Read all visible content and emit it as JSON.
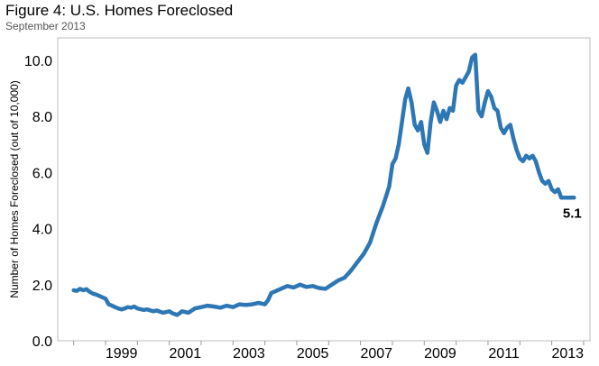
{
  "chart_data": {
    "type": "line",
    "title": "Figure 4: U.S. Homes Foreclosed",
    "subtitle": "September 2013",
    "xlabel": "",
    "ylabel": "Number of Homes Foreclosed (out of 10,000)",
    "xlim": [
      1997.5,
      2014.2
    ],
    "ylim": [
      0,
      10.8
    ],
    "x_ticks": [
      "1999",
      "2001",
      "2003",
      "2005",
      "2007",
      "2009",
      "2011",
      "2013"
    ],
    "y_ticks": [
      "0.0",
      "2.0",
      "4.0",
      "6.0",
      "8.0",
      "10.0"
    ],
    "grid": false,
    "line_color": "#2e77b5",
    "end_label": "5.1",
    "series": [
      {
        "x": [
          1998.0,
          1998.1,
          1998.2,
          1998.3,
          1998.4,
          1998.5,
          1998.6,
          1998.7,
          1998.8,
          1998.9,
          1999.0,
          1999.1,
          1999.2,
          1999.3,
          1999.4,
          1999.5,
          1999.6,
          1999.7,
          1999.8,
          1999.9,
          2000.0,
          2000.2,
          2000.3,
          2000.5,
          2000.6,
          2000.8,
          2001.0,
          2001.1,
          2001.25,
          2001.4,
          2001.6,
          2001.8,
          2002.0,
          2002.2,
          2002.4,
          2002.6,
          2002.8,
          2003.0,
          2003.2,
          2003.4,
          2003.6,
          2003.8,
          2004.0,
          2004.1,
          2004.2,
          2004.3,
          2004.5,
          2004.7,
          2004.9,
          2005.1,
          2005.3,
          2005.5,
          2005.7,
          2005.9,
          2006.1,
          2006.3,
          2006.5,
          2006.7,
          2006.9,
          2007.1,
          2007.3,
          2007.5,
          2007.7,
          2007.9,
          2008.0,
          2008.1,
          2008.2,
          2008.3,
          2008.4,
          2008.5,
          2008.6,
          2008.7,
          2008.8,
          2008.9,
          2009.0,
          2009.1,
          2009.2,
          2009.3,
          2009.4,
          2009.5,
          2009.6,
          2009.7,
          2009.8,
          2009.9,
          2010.0,
          2010.1,
          2010.2,
          2010.3,
          2010.4,
          2010.5,
          2010.6,
          2010.7,
          2010.8,
          2010.9,
          2011.0,
          2011.1,
          2011.2,
          2011.3,
          2011.4,
          2011.5,
          2011.6,
          2011.7,
          2011.8,
          2011.9,
          2012.0,
          2012.1,
          2012.2,
          2012.3,
          2012.4,
          2012.5,
          2012.6,
          2012.7,
          2012.8,
          2012.9,
          2013.0,
          2013.1,
          2013.2,
          2013.3,
          2013.4,
          2013.5,
          2013.6,
          2013.7
        ],
        "y": [
          1.8,
          1.78,
          1.85,
          1.8,
          1.84,
          1.75,
          1.68,
          1.65,
          1.6,
          1.55,
          1.5,
          1.3,
          1.25,
          1.2,
          1.15,
          1.12,
          1.15,
          1.2,
          1.18,
          1.22,
          1.15,
          1.1,
          1.12,
          1.05,
          1.08,
          1.0,
          1.05,
          0.98,
          0.92,
          1.05,
          1.0,
          1.15,
          1.2,
          1.25,
          1.22,
          1.18,
          1.25,
          1.2,
          1.3,
          1.28,
          1.3,
          1.35,
          1.3,
          1.45,
          1.7,
          1.75,
          1.85,
          1.95,
          1.9,
          2.0,
          1.92,
          1.95,
          1.88,
          1.85,
          2.0,
          2.15,
          2.25,
          2.5,
          2.8,
          3.1,
          3.5,
          4.2,
          4.8,
          5.5,
          6.3,
          6.5,
          7.0,
          7.8,
          8.6,
          9.0,
          8.5,
          7.7,
          7.5,
          7.8,
          7.0,
          6.7,
          7.8,
          8.5,
          8.2,
          7.8,
          8.2,
          7.9,
          8.3,
          8.2,
          9.1,
          9.3,
          9.2,
          9.4,
          9.6,
          10.1,
          10.2,
          8.2,
          8.0,
          8.5,
          8.9,
          8.7,
          8.3,
          8.2,
          7.6,
          7.4,
          7.6,
          7.7,
          7.2,
          6.8,
          6.5,
          6.4,
          6.6,
          6.5,
          6.6,
          6.4,
          6.0,
          5.7,
          5.6,
          5.7,
          5.4,
          5.3,
          5.4,
          5.1,
          5.1,
          5.1,
          5.1,
          5.1
        ]
      }
    ]
  }
}
